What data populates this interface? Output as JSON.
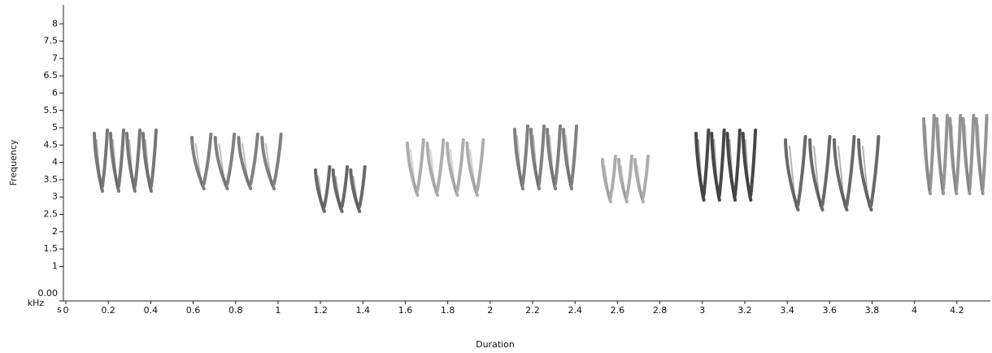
{
  "chart_data": {
    "type": "spectrogram",
    "ylabel": "Frequency",
    "xlabel": "Duration",
    "yunit": "kHz",
    "xunit": "s",
    "ylim": [
      0,
      8.5
    ],
    "yticks": [
      {
        "value": 0,
        "label": "0.00"
      },
      1,
      1.5,
      2,
      2.5,
      3,
      3.5,
      4,
      4.5,
      5,
      5.5,
      6,
      6.5,
      7,
      7.5,
      8
    ],
    "xlim": [
      0,
      4.35
    ],
    "xticks": [
      0,
      0.2,
      0.4,
      0.6,
      0.8,
      1,
      1.2,
      1.4,
      1.6,
      1.8,
      2,
      2.2,
      2.4,
      2.6,
      2.8,
      3,
      3.2,
      3.4,
      3.6,
      3.8,
      4,
      4.2
    ]
  }
}
